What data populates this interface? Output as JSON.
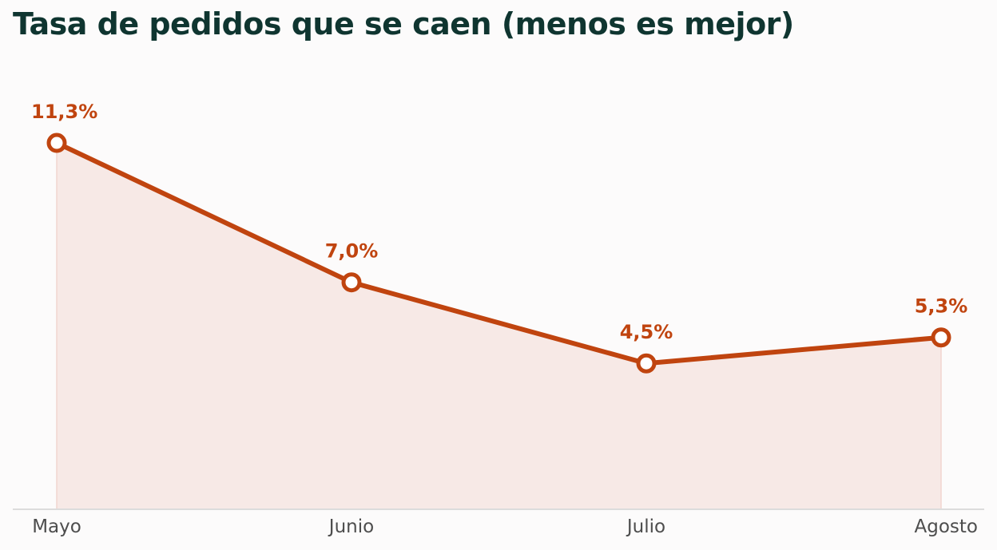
{
  "chart_data": {
    "type": "area",
    "title": "Tasa de pedidos que se caen (menos es mejor)",
    "categories": [
      "Mayo",
      "Junio",
      "Julio",
      "Agosto"
    ],
    "series": [
      {
        "values": [
          11.3,
          7.0,
          4.5,
          5.3
        ],
        "labels": [
          "11,3%",
          "7,0%",
          "4,5%",
          "5,3%"
        ]
      }
    ],
    "ylim": [
      0,
      13
    ],
    "grid": false,
    "legend": "none",
    "colors": {
      "line": "#c0440f",
      "fill": "#f7e9e6",
      "label": "#c0440f",
      "axis": "#dcdcdc",
      "title": "#0f3530",
      "tick": "#4d4d4d"
    }
  }
}
